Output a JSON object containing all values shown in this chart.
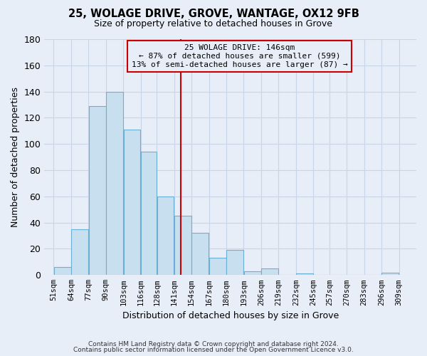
{
  "title": "25, WOLAGE DRIVE, GROVE, WANTAGE, OX12 9FB",
  "subtitle": "Size of property relative to detached houses in Grove",
  "xlabel": "Distribution of detached houses by size in Grove",
  "ylabel": "Number of detached properties",
  "bar_left_edges": [
    51,
    64,
    77,
    90,
    103,
    116,
    128,
    141,
    154,
    167,
    180,
    193,
    206,
    219,
    232,
    245,
    257,
    270,
    283,
    296
  ],
  "bar_widths": [
    13,
    13,
    13,
    13,
    13,
    12,
    13,
    13,
    13,
    13,
    13,
    13,
    13,
    13,
    13,
    12,
    13,
    13,
    13,
    13
  ],
  "bar_heights": [
    6,
    35,
    129,
    140,
    111,
    94,
    60,
    45,
    32,
    13,
    19,
    3,
    5,
    0,
    1,
    0,
    0,
    0,
    0,
    2
  ],
  "bar_color": "#c8dff0",
  "bar_edgecolor": "#6aafd4",
  "xtick_labels": [
    "51sqm",
    "64sqm",
    "77sqm",
    "90sqm",
    "103sqm",
    "116sqm",
    "128sqm",
    "141sqm",
    "154sqm",
    "167sqm",
    "180sqm",
    "193sqm",
    "206sqm",
    "219sqm",
    "232sqm",
    "245sqm",
    "257sqm",
    "270sqm",
    "283sqm",
    "296sqm",
    "309sqm"
  ],
  "xtick_positions": [
    51,
    64,
    77,
    90,
    103,
    116,
    128,
    141,
    154,
    167,
    180,
    193,
    206,
    219,
    232,
    245,
    257,
    270,
    283,
    296,
    309
  ],
  "ylim": [
    0,
    180
  ],
  "yticks": [
    0,
    20,
    40,
    60,
    80,
    100,
    120,
    140,
    160,
    180
  ],
  "vline_x": 146,
  "vline_color": "#cc0000",
  "annotation_title": "25 WOLAGE DRIVE: 146sqm",
  "annotation_line1": "← 87% of detached houses are smaller (599)",
  "annotation_line2": "13% of semi-detached houses are larger (87) →",
  "footer1": "Contains HM Land Registry data © Crown copyright and database right 2024.",
  "footer2": "Contains public sector information licensed under the Open Government Licence v3.0.",
  "bg_color": "#e8eef8",
  "plot_bg_color": "#e8eef8",
  "grid_color": "#c8d4e8"
}
